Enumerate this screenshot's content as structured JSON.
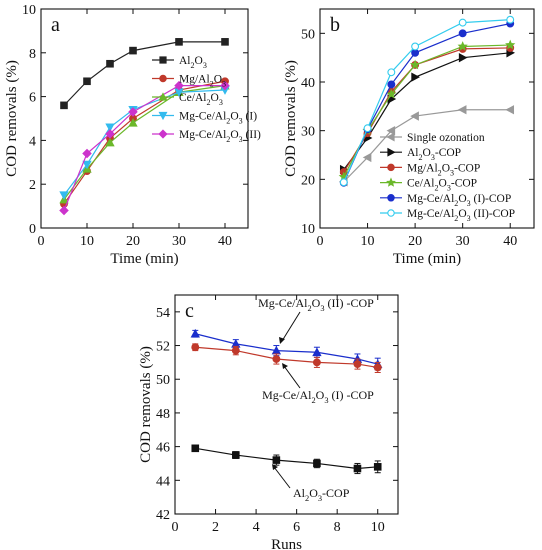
{
  "chart_data": [
    {
      "panel": "a",
      "type": "line",
      "xlabel": "Time (min)",
      "ylabel": "COD removals (%)",
      "xlim": [
        0,
        45
      ],
      "ylim": [
        0,
        10
      ],
      "xticks": [
        "0",
        "10",
        "20",
        "30",
        "40"
      ],
      "yticks": [
        "0",
        "2",
        "4",
        "6",
        "8",
        "10"
      ],
      "legend_placement": "right",
      "x": [
        5,
        10,
        15,
        20,
        30,
        40
      ],
      "series": [
        {
          "name": "Al2O3",
          "display": [
            "Al",
            "2",
            "O",
            "3",
            ""
          ],
          "color": "#222222",
          "marker": "square",
          "values": [
            5.6,
            6.7,
            7.5,
            8.1,
            8.5,
            8.5
          ]
        },
        {
          "name": "Mg/Al2O3",
          "display": [
            "Mg/Al",
            "2",
            "O",
            "3",
            ""
          ],
          "color": "#c0392b",
          "marker": "circle",
          "values": [
            1.1,
            2.6,
            4.1,
            5.0,
            6.3,
            6.7
          ]
        },
        {
          "name": "Ce/Al2O3",
          "display": [
            "Ce/Al",
            "2",
            "O",
            "3",
            ""
          ],
          "color": "#6bb82a",
          "marker": "triangle-up",
          "values": [
            1.3,
            2.7,
            3.9,
            4.8,
            6.2,
            6.5
          ]
        },
        {
          "name": "Mg-Ce/Al2O3 (I)",
          "display": [
            "Mg-Ce/Al",
            "2",
            "O",
            "3",
            " (I)"
          ],
          "color": "#33bbee",
          "marker": "triangle-down",
          "values": [
            1.5,
            2.9,
            4.6,
            5.4,
            6.2,
            6.3
          ]
        },
        {
          "name": "Mg-Ce/Al2O3 (II)",
          "display": [
            "Mg-Ce/Al",
            "2",
            "O",
            "3",
            " (II)"
          ],
          "color": "#cc33cc",
          "marker": "diamond",
          "values": [
            0.8,
            3.4,
            4.3,
            5.3,
            6.5,
            6.5
          ]
        }
      ]
    },
    {
      "panel": "b",
      "type": "line",
      "xlabel": "Time (min)",
      "ylabel": "COD removals (%)",
      "xlim": [
        0,
        45
      ],
      "ylim": [
        10,
        55
      ],
      "xticks": [
        "0",
        "10",
        "20",
        "30",
        "40"
      ],
      "yticks": [
        "10",
        "20",
        "30",
        "40",
        "50"
      ],
      "legend_placement": "bottom-right",
      "x": [
        5,
        10,
        15,
        20,
        30,
        40
      ],
      "series": [
        {
          "name": "Single ozonation",
          "display": [
            "Single ozonation",
            "",
            "",
            "",
            ""
          ],
          "color": "#999999",
          "marker": "triangle-left",
          "values": [
            19.5,
            24.5,
            30.0,
            33.0,
            34.3,
            34.3
          ]
        },
        {
          "name": "Al2O3-COP",
          "display": [
            "Al",
            "2",
            "O",
            "3",
            "-COP"
          ],
          "color": "#111111",
          "marker": "triangle-right",
          "values": [
            22.0,
            28.5,
            36.5,
            41.0,
            45.0,
            46.0
          ]
        },
        {
          "name": "Mg/Al2O3-COP",
          "display": [
            "Mg/Al",
            "2",
            "O",
            "3",
            "-COP"
          ],
          "color": "#c0392b",
          "marker": "circle",
          "values": [
            21.5,
            29.5,
            38.0,
            43.5,
            46.8,
            47.0
          ]
        },
        {
          "name": "Ce/Al2O3-COP",
          "display": [
            "Ce/Al",
            "2",
            "O",
            "3",
            "-COP"
          ],
          "color": "#6bb82a",
          "marker": "star",
          "values": [
            20.5,
            30.0,
            37.5,
            43.5,
            47.3,
            47.6
          ]
        },
        {
          "name": "Mg-Ce/Al2O3 (I)-COP",
          "display": [
            "Mg-Ce/Al",
            "2",
            "O",
            "3",
            " (I)-COP"
          ],
          "color": "#1a2ecc",
          "marker": "circle",
          "values": [
            19.3,
            30.3,
            39.5,
            46.0,
            50.0,
            52.0
          ]
        },
        {
          "name": "Mg-Ce/Al2O3 (II)-COP",
          "display": [
            "Mg-Ce/Al",
            "2",
            "O",
            "3",
            " (II)-COP"
          ],
          "color": "#33ccee",
          "marker": "circle-open",
          "values": [
            19.4,
            30.5,
            42.0,
            47.3,
            52.2,
            52.8
          ]
        }
      ]
    },
    {
      "panel": "c",
      "type": "line",
      "xlabel": "Runs",
      "ylabel": "COD removals (%)",
      "xlim": [
        0,
        11
      ],
      "ylim": [
        42,
        55
      ],
      "xticks": [
        "0",
        "2",
        "4",
        "6",
        "8",
        "10"
      ],
      "yticks": [
        "42",
        "44",
        "46",
        "48",
        "50",
        "52",
        "54"
      ],
      "x": [
        1,
        3,
        5,
        7,
        9,
        10
      ],
      "series": [
        {
          "name": "Mg-Ce/Al2O3 (II) -COP",
          "display": [
            "Mg-Ce/Al",
            "2",
            "O",
            "3",
            " (II) -COP"
          ],
          "color": "#1a2ecc",
          "marker": "triangle-up",
          "values": [
            52.7,
            52.1,
            51.7,
            51.6,
            51.2,
            50.9
          ],
          "errors": [
            0.2,
            0.25,
            0.3,
            0.3,
            0.3,
            0.35
          ]
        },
        {
          "name": "Mg-Ce/Al2O3 (I) -COP",
          "display": [
            "Mg-Ce/Al",
            "2",
            "O",
            "3",
            " (I) -COP"
          ],
          "color": "#c0392b",
          "marker": "circle",
          "values": [
            51.9,
            51.7,
            51.2,
            51.0,
            50.9,
            50.7
          ],
          "errors": [
            0.2,
            0.25,
            0.3,
            0.3,
            0.3,
            0.3
          ]
        },
        {
          "name": "Al2O3-COP",
          "display": [
            "Al",
            "2",
            "O",
            "3",
            "-COP"
          ],
          "color": "#111111",
          "marker": "square",
          "values": [
            45.9,
            45.5,
            45.2,
            45.0,
            44.7,
            44.8
          ],
          "errors": [
            0.15,
            0.2,
            0.3,
            0.25,
            0.3,
            0.35
          ]
        }
      ]
    }
  ]
}
